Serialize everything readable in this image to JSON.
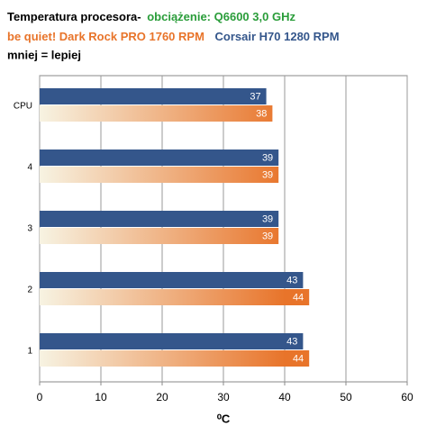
{
  "chart_data": {
    "type": "hbar",
    "title": "Temperatura procesora-",
    "subtitle": "obciążenie: Q6600 3,0 GHz",
    "annotation": "mniej = lepiej",
    "x_label": "⁰C",
    "categories": [
      "CPU",
      "4",
      "3",
      "2",
      "1"
    ],
    "series": [
      {
        "name": "be quiet! Dark Rock PRO 1760  RPM",
        "color": "#e8742a",
        "values": [
          38,
          39,
          39,
          44,
          44
        ]
      },
      {
        "name": "Corsair H70 1280  RPM",
        "color": "#34568b",
        "values": [
          37,
          39,
          39,
          43,
          43
        ]
      }
    ],
    "xlim": [
      0,
      60
    ],
    "xticks": [
      0,
      10,
      20,
      30,
      40,
      50,
      60
    ],
    "grid": true
  }
}
